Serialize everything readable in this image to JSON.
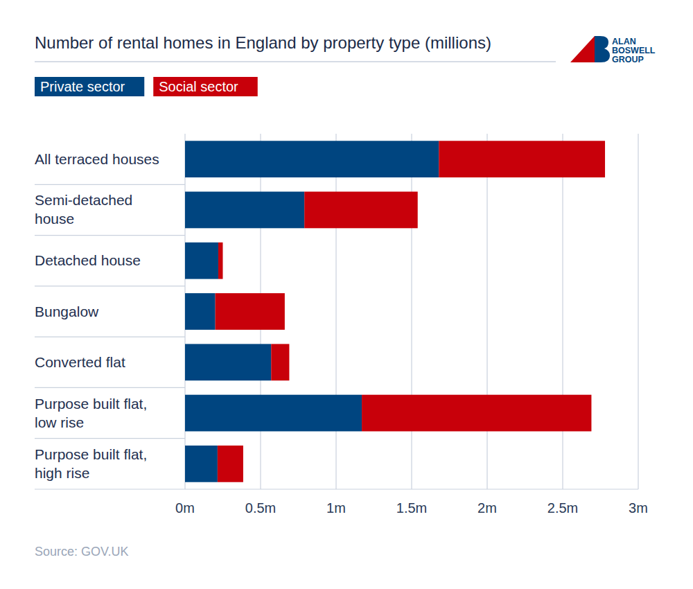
{
  "chart_data": {
    "type": "bar",
    "orientation": "horizontal",
    "stacked": true,
    "grid": true,
    "legend": "top-left",
    "title": "Number of rental homes in England by property type (millions)",
    "source": "Source: GOV.UK",
    "logo": [
      "ALAN",
      "BOSWELL",
      "GROUP"
    ],
    "categories": [
      "All terraced houses",
      "Semi-detached house",
      "Detached house",
      "Bungalow",
      "Converted flat",
      "Purpose built flat, low rise",
      "Purpose built flat, high rise"
    ],
    "series": [
      {
        "name": "Private sector",
        "color": "#004580",
        "values": [
          1.68,
          0.79,
          0.22,
          0.2,
          0.57,
          1.17,
          0.215
        ]
      },
      {
        "name": "Social sector",
        "color": "#c8000a",
        "values": [
          1.1,
          0.75,
          0.03,
          0.46,
          0.12,
          1.52,
          0.17
        ]
      }
    ],
    "xlim": [
      0,
      3
    ],
    "xticks": [
      {
        "value": 0,
        "label": "0m"
      },
      {
        "value": 0.5,
        "label": "0.5m"
      },
      {
        "value": 1,
        "label": "1m"
      },
      {
        "value": 1.5,
        "label": "1.5m"
      },
      {
        "value": 2,
        "label": "2m"
      },
      {
        "value": 2.5,
        "label": "2.5m"
      },
      {
        "value": 3,
        "label": "3m"
      }
    ]
  }
}
